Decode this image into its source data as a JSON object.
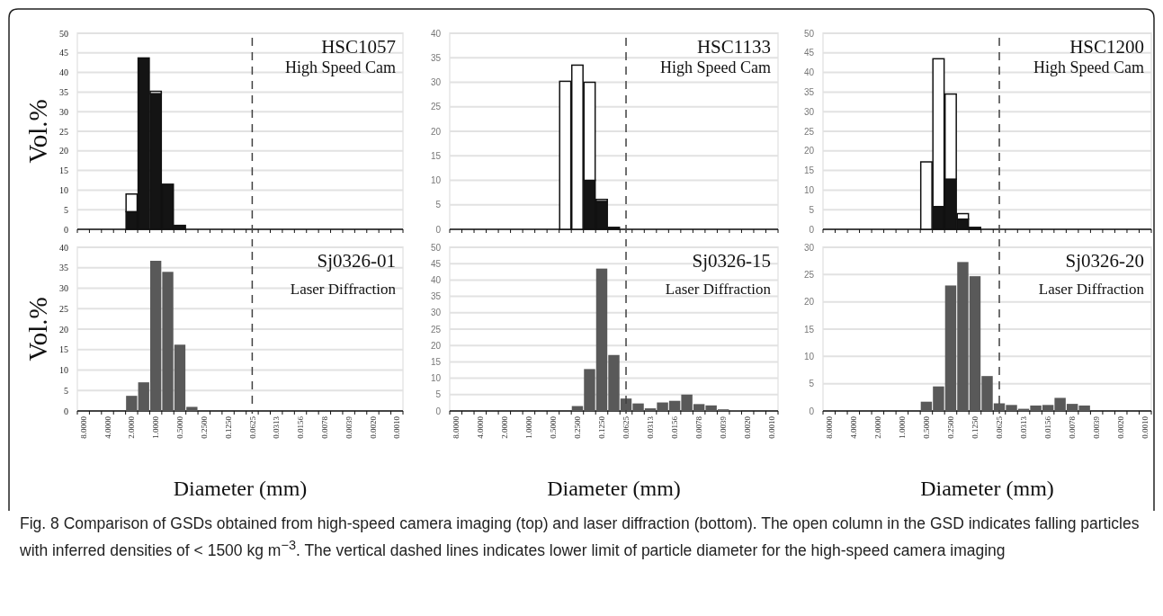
{
  "chart_data": [
    {
      "type": "bar",
      "stacked": true,
      "categories": [
        "8.0000",
        null,
        "4.0000",
        null,
        "2.0000",
        null,
        "1.0000",
        null,
        "0.5000",
        null,
        "0.2500",
        null,
        "0.1250",
        null,
        "0.0625",
        null,
        "0.0313",
        null,
        "0.0156",
        null,
        "0.0078",
        null,
        "0.0039",
        null,
        "0.0020",
        null,
        "0.0010"
      ],
      "ylabel": "Vol.%",
      "ylim": [
        0,
        50
      ],
      "yticks": [
        0,
        5,
        10,
        15,
        20,
        25,
        30,
        35,
        40,
        45,
        50
      ],
      "grid": "y",
      "tick_labels": "y",
      "annotations": [
        "HSC1057",
        "High Speed Cam"
      ],
      "ref_lines": [
        {
          "axis": "x",
          "value": "0.0625",
          "line_style": "dashed",
          "color": "#404040"
        }
      ],
      "series": [
        {
          "color": "#141414",
          "values": [
            0,
            0,
            0,
            0,
            4.5,
            43.7,
            34.6,
            11.5,
            1,
            0,
            0,
            0,
            0,
            0,
            0,
            0,
            0,
            0,
            0,
            0,
            0,
            0,
            0,
            0,
            0,
            0,
            0
          ]
        },
        {
          "color": "#ffffff",
          "values": [
            0,
            0,
            0,
            0,
            4.5,
            0,
            0.6,
            0,
            0,
            0,
            0,
            0,
            0,
            0,
            0,
            0,
            0,
            0,
            0,
            0,
            0,
            0,
            0,
            0,
            0,
            0,
            0
          ]
        }
      ]
    },
    {
      "type": "bar",
      "stacked": true,
      "categories": [
        "8.0000",
        null,
        "4.0000",
        null,
        "2.0000",
        null,
        "1.0000",
        null,
        "0.5000",
        null,
        "0.2500",
        null,
        "0.1250",
        null,
        "0.0625",
        null,
        "0.0313",
        null,
        "0.0156",
        null,
        "0.0078",
        null,
        "0.0039",
        null,
        "0.0020",
        null,
        "0.0010"
      ],
      "ylim": [
        0,
        40
      ],
      "yticks": [
        0,
        5,
        10,
        15,
        20,
        25,
        30,
        35,
        40
      ],
      "grid": "y",
      "tick_labels": "y",
      "annotations": [
        "HSC1133",
        "High Speed Cam"
      ],
      "ref_lines": [
        {
          "axis": "x",
          "value": "0.0625",
          "line_style": "dashed",
          "color": "#404040"
        }
      ],
      "series": [
        {
          "color": "#141414",
          "values": [
            0,
            0,
            0,
            0,
            0,
            0,
            0,
            0,
            0,
            0,
            0,
            10,
            5.7,
            0.4,
            0,
            0,
            0,
            0,
            0,
            0,
            0,
            0,
            0,
            0,
            0,
            0,
            0
          ]
        },
        {
          "color": "#ffffff",
          "values": [
            0,
            0,
            0,
            0,
            0,
            0,
            0,
            0,
            0,
            30.2,
            33.5,
            20,
            0.4,
            0,
            0,
            0,
            0,
            0,
            0,
            0,
            0,
            0,
            0,
            0,
            0,
            0,
            0
          ]
        }
      ]
    },
    {
      "type": "bar",
      "stacked": true,
      "categories": [
        "8.0000",
        null,
        "4.0000",
        null,
        "2.0000",
        null,
        "1.0000",
        null,
        "0.5000",
        null,
        "0.2500",
        null,
        "0.1250",
        null,
        "0.0625",
        null,
        "0.0313",
        null,
        "0.0156",
        null,
        "0.0078",
        null,
        "0.0039",
        null,
        "0.0020",
        null,
        "0.0010"
      ],
      "ylim": [
        0,
        50
      ],
      "yticks": [
        0,
        5,
        10,
        15,
        20,
        25,
        30,
        35,
        40,
        45,
        50
      ],
      "grid": "y",
      "tick_labels": "y",
      "annotations": [
        "HSC1200",
        "High Speed Cam"
      ],
      "ref_lines": [
        {
          "axis": "x",
          "value": "0.0625",
          "line_style": "dashed",
          "color": "#404040"
        }
      ],
      "series": [
        {
          "color": "#141414",
          "values": [
            0,
            0,
            0,
            0,
            0,
            0,
            0,
            0,
            0,
            5.8,
            12.8,
            2.6,
            0.5,
            0,
            0,
            0,
            0,
            0,
            0,
            0,
            0,
            0,
            0,
            0,
            0,
            0,
            0
          ]
        },
        {
          "color": "#ffffff",
          "values": [
            0,
            0,
            0,
            0,
            0,
            0,
            0,
            0,
            17.2,
            37.7,
            21.7,
            1.4,
            0,
            0,
            0,
            0,
            0,
            0,
            0,
            0,
            0,
            0,
            0,
            0,
            0,
            0,
            0
          ]
        }
      ]
    },
    {
      "type": "bar",
      "categories": [
        "8.0000",
        null,
        "4.0000",
        null,
        "2.0000",
        null,
        "1.0000",
        null,
        "0.5000",
        null,
        "0.2500",
        null,
        "0.1250",
        null,
        "0.0625",
        null,
        "0.0313",
        null,
        "0.0156",
        null,
        "0.0078",
        null,
        "0.0039",
        null,
        "0.0020",
        null,
        "0.0010"
      ],
      "xlabel": "Diameter (mm)",
      "ylabel": "Vol.%",
      "ylim": [
        0,
        40
      ],
      "yticks": [
        0,
        5,
        10,
        15,
        20,
        25,
        30,
        35,
        40
      ],
      "grid": "y",
      "annotations": [
        "Sj0326-01",
        "Laser Diffraction"
      ],
      "ref_lines": [
        {
          "axis": "x",
          "value": "0.0625",
          "line_style": "dashed",
          "color": "#404040"
        }
      ],
      "series": [
        {
          "color": "#595959",
          "values": [
            0,
            0,
            0,
            0,
            3.7,
            7,
            36.7,
            34,
            16.2,
            1,
            0,
            0,
            0,
            0,
            0,
            0,
            0,
            0,
            0,
            0,
            0,
            0,
            0,
            0,
            0,
            0,
            0
          ]
        }
      ]
    },
    {
      "type": "bar",
      "categories": [
        "8.0000",
        null,
        "4.0000",
        null,
        "2.0000",
        null,
        "1.0000",
        null,
        "0.5000",
        null,
        "0.2500",
        null,
        "0.1250",
        null,
        "0.0625",
        null,
        "0.0313",
        null,
        "0.0156",
        null,
        "0.0078",
        null,
        "0.0039",
        null,
        "0.0020",
        null,
        "0.0010"
      ],
      "xlabel": "Diameter (mm)",
      "ylim": [
        0,
        50
      ],
      "yticks": [
        0,
        5,
        10,
        15,
        20,
        25,
        30,
        35,
        40,
        45,
        50
      ],
      "grid": "y",
      "annotations": [
        "Sj0326-15",
        "Laser Diffraction"
      ],
      "ref_lines": [
        {
          "axis": "x",
          "value": "0.0625",
          "line_style": "dashed",
          "color": "#404040"
        }
      ],
      "series": [
        {
          "color": "#595959",
          "values": [
            0,
            0,
            0,
            0,
            0,
            0,
            0,
            0,
            0,
            0,
            1.5,
            12.8,
            43.5,
            17.1,
            3.8,
            2.3,
            0.8,
            2.6,
            3.1,
            5,
            2.1,
            1.7,
            0.5,
            0.2,
            0,
            0,
            0
          ]
        }
      ]
    },
    {
      "type": "bar",
      "categories": [
        "8.0000",
        null,
        "4.0000",
        null,
        "2.0000",
        null,
        "1.0000",
        null,
        "0.5000",
        null,
        "0.2500",
        null,
        "0.1250",
        null,
        "0.0625",
        null,
        "0.0313",
        null,
        "0.0156",
        null,
        "0.0078",
        null,
        "0.0039",
        null,
        "0.0020",
        null,
        "0.0010"
      ],
      "xlabel": "Diameter (mm)",
      "ylim": [
        0,
        30
      ],
      "yticks": [
        0,
        5,
        10,
        15,
        20,
        25,
        30
      ],
      "grid": "y",
      "annotations": [
        "Sj0326-20",
        "Laser Diffraction",
        "Fig. 8 Comparison of GSDs obtained from high-speed camera imaging (top) and laser diffraction (bottom). The open column in the GSD indicates falling particles with inferred densities of < 1500 kg m$^{−3}$. The vertical dashed lines indicates lower limit of particle diameter for the high-speed camera imaging"
      ],
      "ref_lines": [
        {
          "axis": "x",
          "value": "0.0625",
          "line_style": "dashed",
          "color": "#404040"
        }
      ],
      "series": [
        {
          "color": "#595959",
          "values": [
            0,
            0,
            0,
            0,
            0,
            0,
            0,
            0,
            1.7,
            4.5,
            23,
            27.3,
            24.7,
            6.4,
            1.4,
            1.1,
            0.4,
            1,
            1.1,
            2.4,
            1.3,
            1,
            0,
            0,
            0,
            0,
            0
          ]
        }
      ]
    }
  ]
}
